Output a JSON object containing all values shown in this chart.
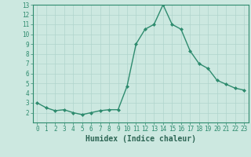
{
  "x": [
    0,
    1,
    2,
    3,
    4,
    5,
    6,
    7,
    8,
    9,
    10,
    11,
    12,
    13,
    14,
    15,
    16,
    17,
    18,
    19,
    20,
    21,
    22,
    23
  ],
  "y": [
    3.0,
    2.5,
    2.2,
    2.3,
    2.0,
    1.8,
    2.0,
    2.2,
    2.3,
    2.3,
    4.7,
    9.0,
    10.5,
    11.0,
    13.0,
    11.0,
    10.5,
    8.3,
    7.0,
    6.5,
    5.3,
    4.9,
    4.5,
    4.3
  ],
  "line_color": "#2e8b6e",
  "bg_color": "#cce8e0",
  "grid_color": "#b0d4cc",
  "xlabel": "Humidex (Indice chaleur)",
  "ylim": [
    1,
    13
  ],
  "xlim": [
    -0.5,
    23.5
  ],
  "yticks": [
    2,
    3,
    4,
    5,
    6,
    7,
    8,
    9,
    10,
    11,
    12,
    13
  ],
  "xticks": [
    0,
    1,
    2,
    3,
    4,
    5,
    6,
    7,
    8,
    9,
    10,
    11,
    12,
    13,
    14,
    15,
    16,
    17,
    18,
    19,
    20,
    21,
    22,
    23
  ],
  "tick_color": "#2e8b6e",
  "label_color": "#2e6655",
  "spine_color": "#2e8b6e",
  "marker": "D",
  "markersize": 2.0,
  "linewidth": 1.0,
  "xlabel_fontsize": 7,
  "tick_fontsize": 5.5
}
